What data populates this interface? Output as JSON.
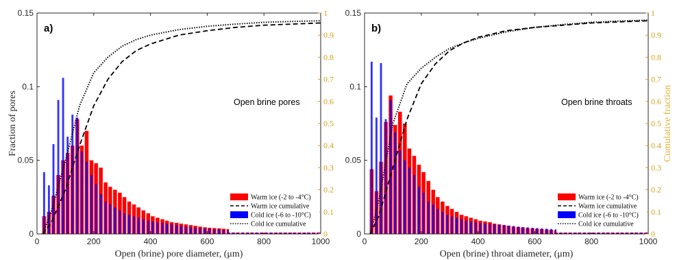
{
  "colors": {
    "warm": "#ff0000",
    "cold": "#0000ff",
    "right_axis": "#d4a017",
    "axis": "#262626"
  },
  "chart_data": [
    {
      "type": "bar",
      "panel_label": "a)",
      "annotation": "Open brine pores",
      "xlabel": "Open (brine) pore diameter, (μm)",
      "ylabel": "Fraction of pores",
      "y2label": "",
      "xlim": [
        0,
        1000
      ],
      "ylim": [
        0,
        0.15
      ],
      "y2lim": [
        0,
        1
      ],
      "xticks": [
        "0",
        "200",
        "400",
        "600",
        "800",
        "1000"
      ],
      "yticks": [
        "0",
        "0.05",
        "0.1",
        "0.15"
      ],
      "y2ticks": [
        "0",
        "0.1",
        "0.2",
        "0.3",
        "0.4",
        "0.5",
        "0.6",
        "0.7",
        "0.8",
        "0.9",
        "1"
      ],
      "grid": false,
      "legend_position": "bottom-right",
      "bin_width": 16.6,
      "bar_x": [
        25,
        42,
        58,
        75,
        92,
        108,
        125,
        142,
        158,
        175,
        192,
        208,
        225,
        242,
        258,
        275,
        292,
        308,
        325,
        342,
        358,
        375,
        392,
        408,
        425,
        442,
        458,
        475,
        492,
        508,
        525,
        542,
        558,
        575,
        592,
        608,
        625,
        642,
        658,
        675,
        692,
        708,
        725,
        742,
        758,
        775,
        792,
        808,
        825,
        842,
        858,
        875,
        892,
        908,
        925,
        942,
        958,
        975,
        992
      ],
      "series": [
        {
          "name": "Warm ice (-2 to -4°C)",
          "kind": "bar",
          "values": [
            0.012,
            0.015,
            0.026,
            0.04,
            0.05,
            0.055,
            0.06,
            0.078,
            0.06,
            0.07,
            0.05,
            0.048,
            0.045,
            0.035,
            0.032,
            0.03,
            0.028,
            0.025,
            0.022,
            0.02,
            0.018,
            0.016,
            0.014,
            0.012,
            0.011,
            0.01,
            0.009,
            0.008,
            0.0075,
            0.007,
            0.0065,
            0.006,
            0.0055,
            0.005,
            0.0045,
            0.0042,
            0.004,
            0.0038,
            0.0035,
            0.0033,
            0.003,
            0.0028,
            0.0026,
            0.0025,
            0.0024,
            0.0022,
            0.002,
            0.0019,
            0.0018,
            0.0017,
            0.0016,
            0.0015,
            0.0014,
            0.0013,
            0.0012,
            0.0012,
            0.0011,
            0.001,
            0.001
          ]
        },
        {
          "name": "Cold ice (-6 to -10°C)",
          "kind": "bar",
          "values": [
            0.042,
            0.033,
            0.061,
            0.091,
            0.106,
            0.066,
            0.081,
            0.079,
            0.056,
            0.049,
            0.04,
            0.034,
            0.027,
            0.022,
            0.02,
            0.018,
            0.016,
            0.014,
            0.013,
            0.012,
            0.011,
            0.01,
            0.009,
            0.0085,
            0.008,
            0.0075,
            0.007,
            0.0065,
            0.006,
            0.0055,
            0.005,
            0.0046,
            0.0043,
            0.004,
            0.0037,
            0.0035,
            0.0032,
            0.003,
            0.0028,
            0.0026,
            0.0025,
            0.0023,
            0.0022,
            0.002,
            0.0019,
            0.0018,
            0.0017,
            0.0016,
            0.0015,
            0.0014,
            0.0013,
            0.0013,
            0.0012,
            0.0011,
            0.0011,
            0.001,
            0.001,
            0.0009,
            0.0009
          ]
        },
        {
          "name": "Warm ice cumulative",
          "kind": "line",
          "style": "dashed",
          "x": [
            20,
            50,
            100,
            150,
            200,
            250,
            300,
            350,
            400,
            500,
            600,
            700,
            800,
            900,
            1000
          ],
          "values": [
            0,
            0.05,
            0.2,
            0.4,
            0.58,
            0.7,
            0.78,
            0.83,
            0.86,
            0.9,
            0.92,
            0.935,
            0.945,
            0.95,
            0.955
          ]
        },
        {
          "name": "Cold ice cumulative",
          "kind": "line",
          "style": "dotted",
          "x": [
            20,
            50,
            100,
            150,
            200,
            250,
            300,
            350,
            400,
            500,
            600,
            700,
            800,
            900,
            1000
          ],
          "values": [
            0,
            0.1,
            0.33,
            0.58,
            0.73,
            0.8,
            0.85,
            0.88,
            0.9,
            0.925,
            0.94,
            0.95,
            0.958,
            0.962,
            0.965
          ]
        }
      ]
    },
    {
      "type": "bar",
      "panel_label": "b)",
      "annotation": "Open brine throats",
      "xlabel": "Open (brine) throat diameter, (μm)",
      "ylabel": "",
      "y2label": "Cumulative fraction",
      "xlim": [
        0,
        1000
      ],
      "ylim": [
        0,
        0.15
      ],
      "y2lim": [
        0,
        1
      ],
      "xticks": [
        "0",
        "200",
        "400",
        "600",
        "800",
        "1000"
      ],
      "yticks": [
        "0",
        "0.05",
        "0.1",
        "0.15"
      ],
      "y2ticks": [
        "0",
        "0.1",
        "0.2",
        "0.3",
        "0.4",
        "0.5",
        "0.6",
        "0.7",
        "0.8",
        "0.9",
        "1"
      ],
      "grid": false,
      "legend_position": "bottom-right",
      "bin_width": 16.6,
      "bar_x": [
        25,
        42,
        58,
        75,
        92,
        108,
        125,
        142,
        158,
        175,
        192,
        208,
        225,
        242,
        258,
        275,
        292,
        308,
        325,
        342,
        358,
        375,
        392,
        408,
        425,
        442,
        458,
        475,
        492,
        508,
        525,
        542,
        558,
        575,
        592,
        608,
        625,
        642,
        658,
        675,
        692,
        708,
        725,
        742,
        758,
        775,
        792,
        808,
        825,
        842,
        858,
        875,
        892,
        908,
        925,
        942,
        958,
        975,
        992
      ],
      "series": [
        {
          "name": "Warm ice (-2 to -4°C)",
          "kind": "bar",
          "values": [
            0.044,
            0.029,
            0.049,
            0.076,
            0.094,
            0.074,
            0.083,
            0.075,
            0.058,
            0.053,
            0.047,
            0.042,
            0.036,
            0.03,
            0.025,
            0.022,
            0.019,
            0.017,
            0.015,
            0.013,
            0.012,
            0.011,
            0.01,
            0.009,
            0.0085,
            0.008,
            0.007,
            0.0065,
            0.006,
            0.0055,
            0.005,
            0.0047,
            0.0044,
            0.004,
            0.0038,
            0.0035,
            0.0033,
            0.003,
            0.0028,
            0.0026,
            0.0025,
            0.0023,
            0.0022,
            0.002,
            0.0019,
            0.0018,
            0.0017,
            0.0016,
            0.0015,
            0.0014,
            0.0013,
            0.0013,
            0.0012,
            0.0011,
            0.0011,
            0.001,
            0.001,
            0.0009,
            0.0009
          ]
        },
        {
          "name": "Cold ice (-6 to -10°C)",
          "kind": "bar",
          "values": [
            0.117,
            0.079,
            0.116,
            0.078,
            0.091,
            0.069,
            0.057,
            0.05,
            0.045,
            0.04,
            0.032,
            0.028,
            0.022,
            0.02,
            0.017,
            0.015,
            0.013,
            0.012,
            0.011,
            0.01,
            0.009,
            0.0085,
            0.008,
            0.0075,
            0.007,
            0.0068,
            0.0065,
            0.0062,
            0.006,
            0.0057,
            0.0054,
            0.005,
            0.0047,
            0.0045,
            0.0042,
            0.004,
            0.0038,
            0.0036,
            0.0034,
            0.0032,
            0.003,
            0.0029,
            0.0028,
            0.0027,
            0.0026,
            0.0025,
            0.0024,
            0.0023,
            0.0022,
            0.0021,
            0.002,
            0.0019,
            0.0018,
            0.0017,
            0.0016,
            0.0016,
            0.0015,
            0.0014,
            0.0014
          ]
        },
        {
          "name": "Warm ice cumulative",
          "kind": "line",
          "style": "dashed",
          "x": [
            20,
            50,
            100,
            150,
            200,
            250,
            300,
            350,
            400,
            500,
            600,
            700,
            800,
            900,
            1000
          ],
          "values": [
            0,
            0.08,
            0.3,
            0.52,
            0.68,
            0.77,
            0.83,
            0.865,
            0.89,
            0.92,
            0.935,
            0.945,
            0.955,
            0.96,
            0.965
          ]
        },
        {
          "name": "Cold ice cumulative",
          "kind": "line",
          "style": "dotted",
          "x": [
            20,
            50,
            100,
            150,
            200,
            250,
            300,
            350,
            400,
            500,
            600,
            700,
            800,
            900,
            1000
          ],
          "values": [
            0,
            0.15,
            0.5,
            0.68,
            0.75,
            0.8,
            0.84,
            0.865,
            0.885,
            0.915,
            0.935,
            0.948,
            0.958,
            0.964,
            0.968
          ]
        }
      ]
    }
  ]
}
